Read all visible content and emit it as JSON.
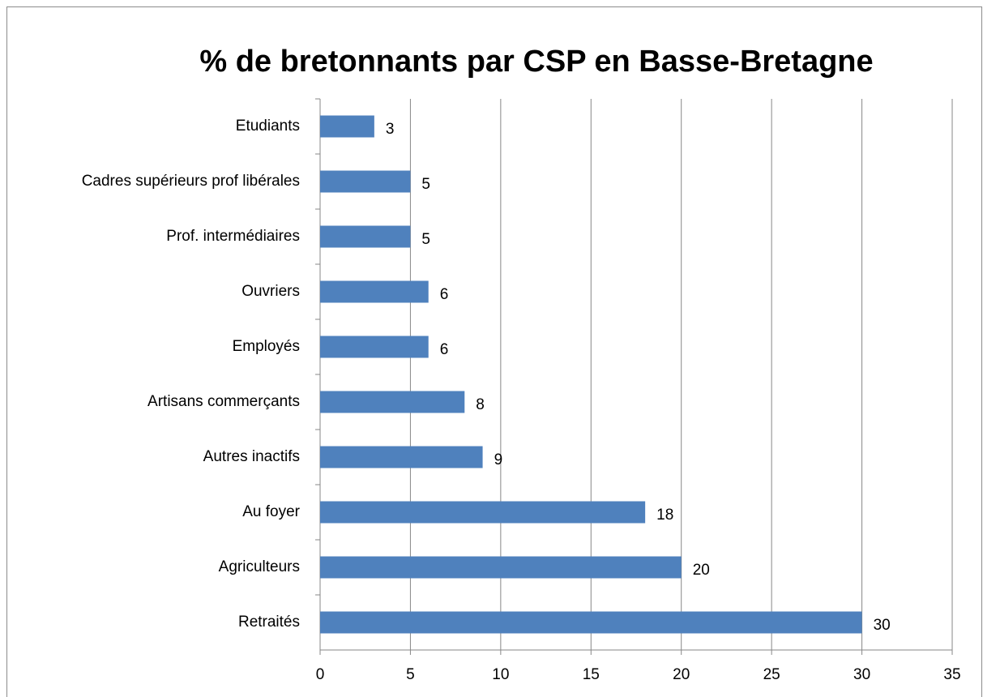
{
  "chart_data": {
    "type": "bar",
    "orientation": "horizontal",
    "title": "% de bretonnants par CSP en Basse-Bretagne",
    "categories": [
      "Etudiants",
      "Cadres supérieurs prof libérales",
      "Prof. intermédiaires",
      "Ouvriers",
      "Employés",
      "Artisans commerçants",
      "Autres inactifs",
      "Au foyer",
      "Agriculteurs",
      "Retraités"
    ],
    "values": [
      3,
      5,
      5,
      6,
      6,
      8,
      9,
      18,
      20,
      30
    ],
    "color": "#4f81bd",
    "xlim": [
      0,
      35
    ],
    "xticks": [
      0,
      5,
      10,
      15,
      20,
      25,
      30,
      35
    ],
    "grid": true
  }
}
